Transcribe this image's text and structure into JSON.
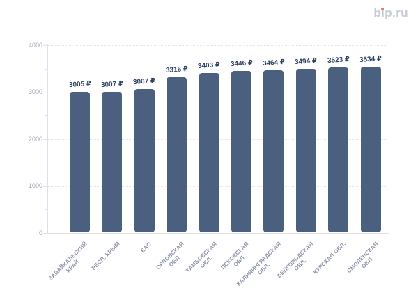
{
  "logo": {
    "text": "bip.ru",
    "color": "#c7cbd8",
    "dot_color": "#f4765c"
  },
  "chart_data": {
    "type": "bar",
    "title": "",
    "xlabel": "",
    "ylabel": "",
    "unit": "₽",
    "categories": [
      "ЗАБАЙКАЛЬСКИЙ\nКРАЙ",
      "РЕСП. КРЫМ",
      "ЕАО",
      "ОРЛОВСКАЯ\nОБЛ.",
      "ТАМБОВСКАЯ\nОБЛ.",
      "ПСКОВСКАЯ\nОБЛ.",
      "КАЛИНИНГРАДСКАЯ\nОБЛ.",
      "БЕЛГОРОДСКАЯ\nОБЛ.",
      "КУРСКАЯ ОБЛ.",
      "СМОЛЕНСКАЯ\nОБЛ."
    ],
    "values": [
      3005,
      3007,
      3067,
      3316,
      3403,
      3446,
      3464,
      3494,
      3523,
      3534
    ],
    "value_labels": [
      "3005 ₽",
      "3007 ₽",
      "3067 ₽",
      "3316 ₽",
      "3403 ₽",
      "3446 ₽",
      "3464 ₽",
      "3494 ₽",
      "3523 ₽",
      "3534 ₽"
    ],
    "ylim": [
      0,
      4000
    ],
    "yticks": [
      0,
      1000,
      2000,
      3000,
      4000
    ],
    "minor_yticks": [
      500,
      1500,
      2500,
      3500
    ],
    "grid": "dotted horizontal lines at major y ticks",
    "legend": "none",
    "colors": {
      "bar": "#4b607e",
      "value_label": "#2d4164",
      "grid": "#e3e6ed",
      "axis": "#dde0e8",
      "y_tick_text": "#9ca3b2",
      "x_tick_text": "#8b93a6",
      "background": "#ffffff"
    }
  }
}
